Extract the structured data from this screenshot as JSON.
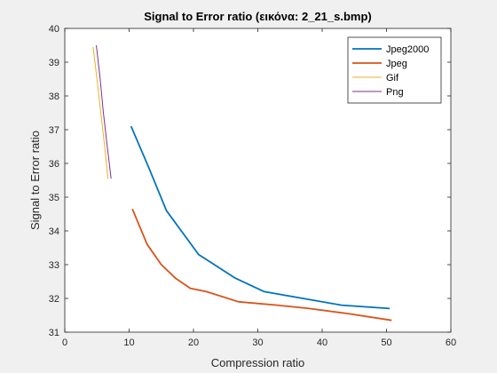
{
  "chart_data": {
    "type": "line",
    "title": "Signal to Error ratio (εικόνα: 2_21_s.bmp)",
    "xlabel": "Compression ratio",
    "ylabel": "Signal to Error ratio",
    "xlim": [
      0,
      60
    ],
    "ylim": [
      31,
      40
    ],
    "xticks": [
      "0",
      "10",
      "20",
      "30",
      "40",
      "50",
      "60"
    ],
    "yticks": [
      "31",
      "32",
      "33",
      "34",
      "35",
      "36",
      "37",
      "38",
      "39",
      "40"
    ],
    "grid": false,
    "legend_position": "top-right",
    "series": [
      {
        "name": "Jpeg2000",
        "color": "#0072bd",
        "x": [
          10.3,
          13.0,
          15.8,
          20.8,
          26.5,
          31.0,
          37.0,
          43.0,
          50.5
        ],
        "y": [
          37.1,
          35.9,
          34.6,
          33.3,
          32.6,
          32.2,
          32.0,
          31.8,
          31.7
        ]
      },
      {
        "name": "Jpeg",
        "color": "#d95319",
        "x": [
          10.5,
          12.8,
          15.0,
          17.2,
          19.5,
          22.0,
          27.0,
          33.0,
          38.0,
          44.0,
          50.8
        ],
        "y": [
          34.65,
          33.6,
          33.0,
          32.6,
          32.3,
          32.2,
          31.9,
          31.8,
          31.7,
          31.55,
          31.35
        ]
      },
      {
        "name": "Gif",
        "color": "#edb120",
        "x": [
          4.4,
          5.0,
          5.6,
          6.2,
          6.7
        ],
        "y": [
          39.45,
          38.5,
          37.5,
          36.5,
          35.55
        ]
      },
      {
        "name": "Png",
        "color": "#7e2f8e",
        "x": [
          4.9,
          5.5,
          6.0,
          6.6,
          7.2
        ],
        "y": [
          39.5,
          38.5,
          37.5,
          36.5,
          35.55
        ]
      }
    ]
  }
}
